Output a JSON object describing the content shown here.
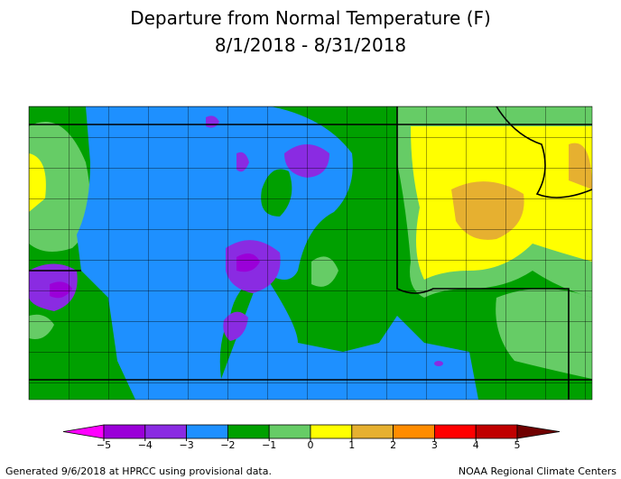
{
  "header": {
    "title": "Departure from Normal Temperature (F)",
    "subtitle": "8/1/2018 - 8/31/2018"
  },
  "legend": {
    "ticks": [
      {
        "value": -5,
        "label": "−5"
      },
      {
        "value": -4,
        "label": "−4"
      },
      {
        "value": -3,
        "label": "−3"
      },
      {
        "value": -2,
        "label": "−2"
      },
      {
        "value": -1,
        "label": "−1"
      },
      0,
      1,
      2,
      3,
      4,
      5
    ],
    "colors": [
      "#ff00ff",
      "#9a00d8",
      "#8a2be2",
      "#1e90ff",
      "#00a000",
      "#66cc66",
      "#ffff00",
      "#e6b030",
      "#ff8c00",
      "#ff0000",
      "#c00000",
      "#700000"
    ]
  },
  "footer": {
    "left": "Generated 9/6/2018 at HPRCC using provisional data.",
    "right": "NOAA Regional Climate Centers"
  }
}
